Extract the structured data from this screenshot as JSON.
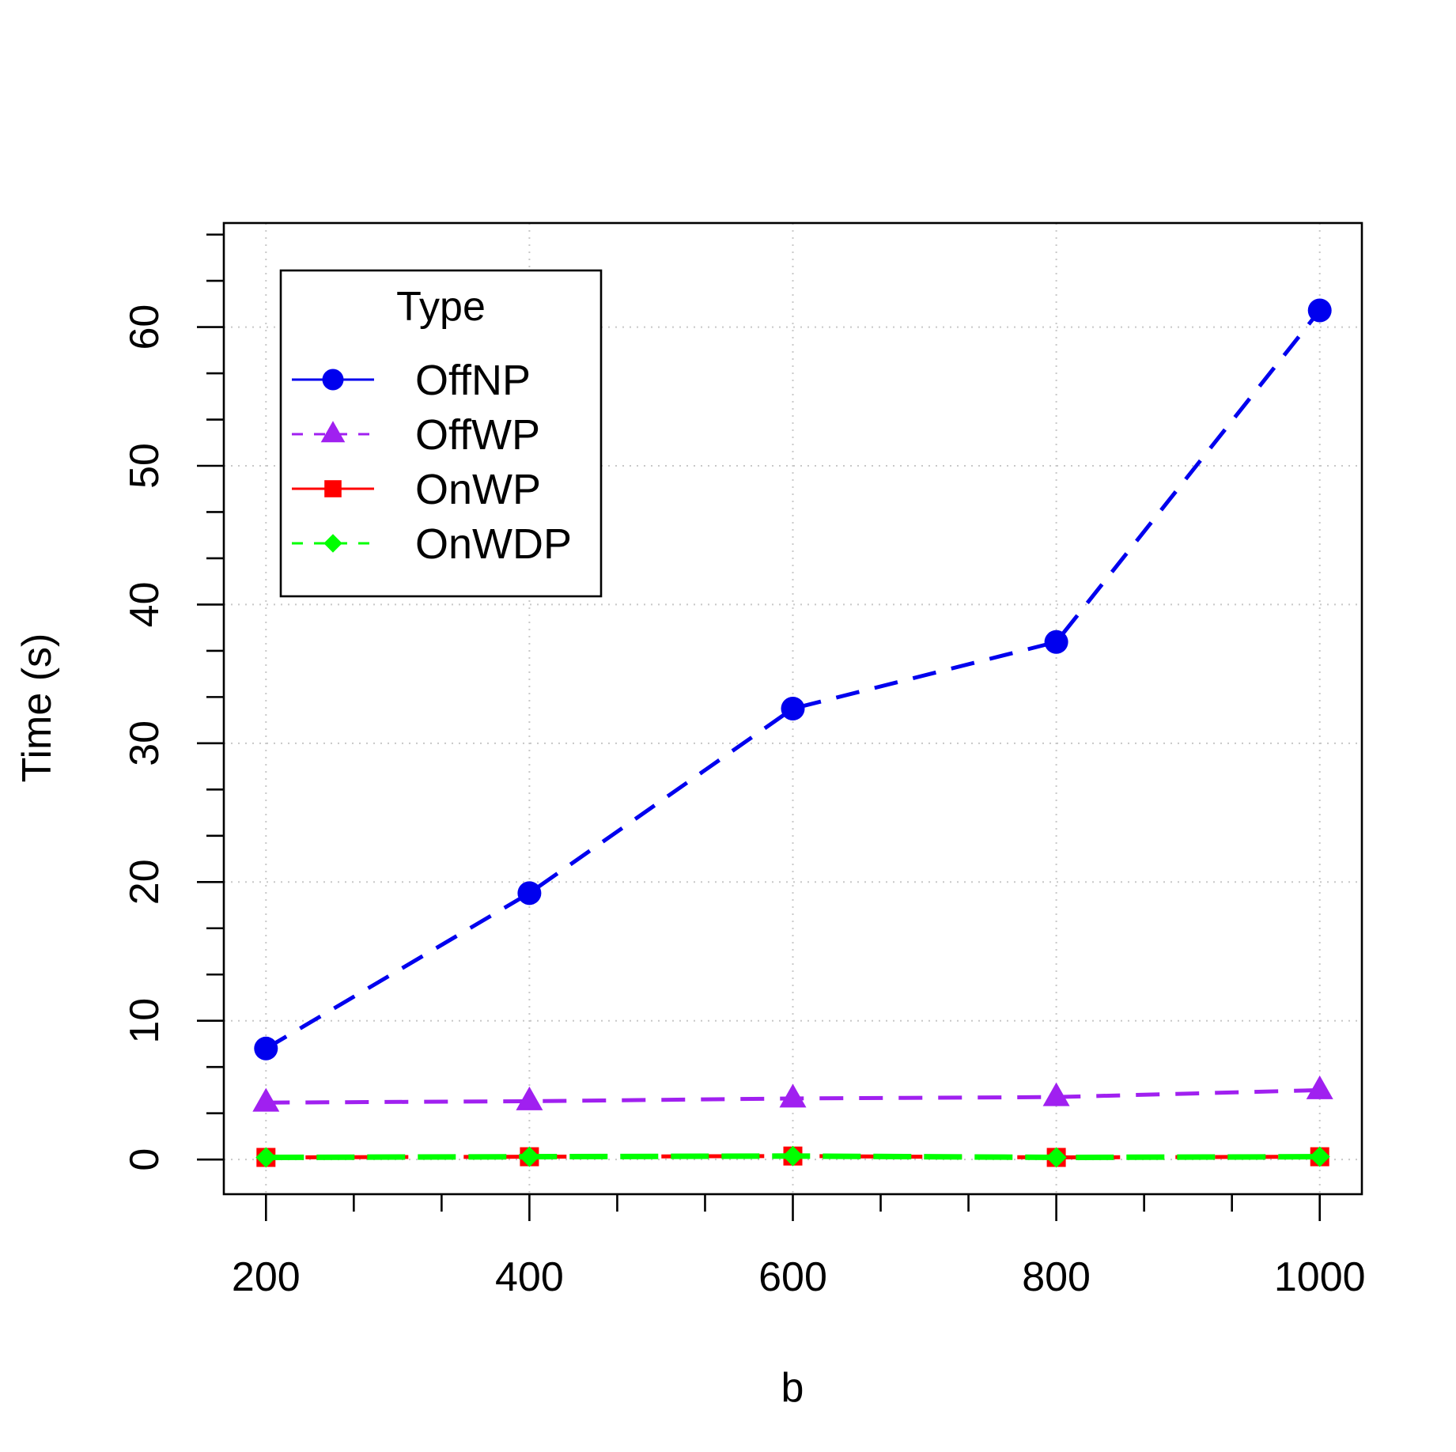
{
  "chart_data": {
    "type": "line",
    "title": "",
    "xlabel": "b",
    "ylabel": "Time (s)",
    "x": [
      200,
      400,
      600,
      800,
      1000
    ],
    "xticks": [
      200,
      400,
      600,
      800,
      1000
    ],
    "xtick_labels": [
      "200",
      "400",
      "600",
      "800",
      "1000"
    ],
    "yticks": [
      0,
      10,
      20,
      30,
      40,
      50,
      60
    ],
    "ytick_labels": [
      "0",
      "10",
      "20",
      "30",
      "40",
      "50",
      "60"
    ],
    "xlim": [
      168,
      1032
    ],
    "ylim": [
      -2.5,
      67.5
    ],
    "grid": true,
    "legend_title": "Type",
    "legend_position": "top-left",
    "series": [
      {
        "name": "OffNP",
        "values": [
          8.0,
          19.2,
          32.5,
          37.3,
          61.2
        ],
        "color": "#0000ee",
        "marker": "circle"
      },
      {
        "name": "OffWP",
        "values": [
          4.1,
          4.2,
          4.4,
          4.5,
          5.0
        ],
        "color": "#a020f0",
        "marker": "triangle"
      },
      {
        "name": "OnWP",
        "values": [
          0.15,
          0.2,
          0.25,
          0.15,
          0.2
        ],
        "color": "#ff0000",
        "marker": "square"
      },
      {
        "name": "OnWDP",
        "values": [
          0.15,
          0.2,
          0.25,
          0.15,
          0.2
        ],
        "color": "#00ff00",
        "marker": "diamond"
      }
    ]
  }
}
